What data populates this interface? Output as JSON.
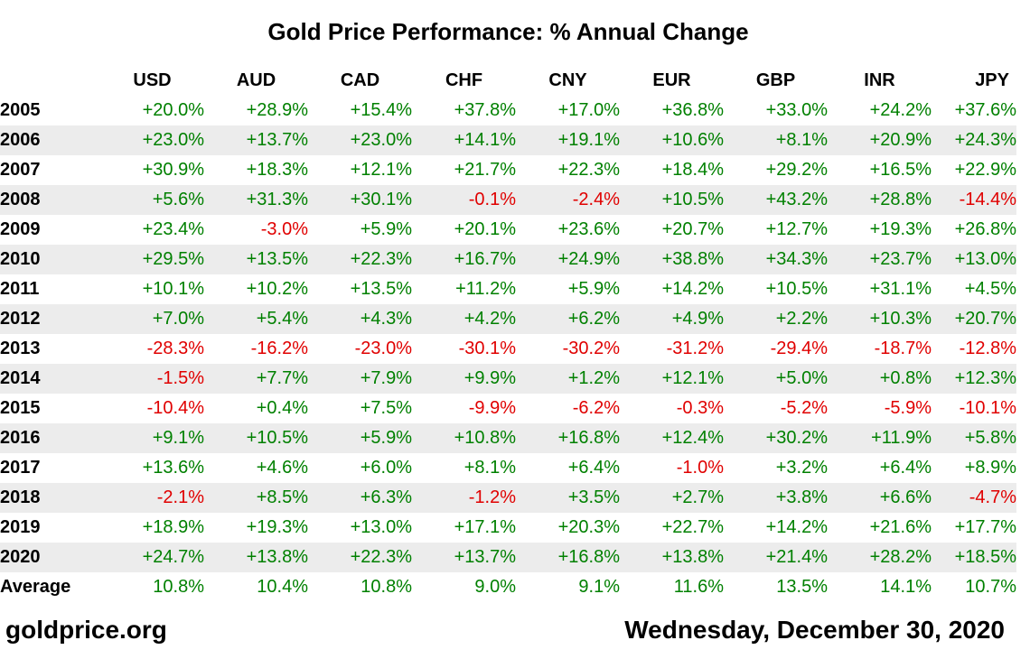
{
  "chart_data": {
    "type": "table",
    "title": "Gold Price Performance: % Annual Change",
    "columns": [
      "USD",
      "AUD",
      "CAD",
      "CHF",
      "CNY",
      "EUR",
      "GBP",
      "INR",
      "JPY"
    ],
    "rows": [
      {
        "label": "2005",
        "values": [
          "+20.0%",
          "+28.9%",
          "+15.4%",
          "+37.8%",
          "+17.0%",
          "+36.8%",
          "+33.0%",
          "+24.2%",
          "+37.6%"
        ]
      },
      {
        "label": "2006",
        "values": [
          "+23.0%",
          "+13.7%",
          "+23.0%",
          "+14.1%",
          "+19.1%",
          "+10.6%",
          "+8.1%",
          "+20.9%",
          "+24.3%"
        ]
      },
      {
        "label": "2007",
        "values": [
          "+30.9%",
          "+18.3%",
          "+12.1%",
          "+21.7%",
          "+22.3%",
          "+18.4%",
          "+29.2%",
          "+16.5%",
          "+22.9%"
        ]
      },
      {
        "label": "2008",
        "values": [
          "+5.6%",
          "+31.3%",
          "+30.1%",
          "-0.1%",
          "-2.4%",
          "+10.5%",
          "+43.2%",
          "+28.8%",
          "-14.4%"
        ]
      },
      {
        "label": "2009",
        "values": [
          "+23.4%",
          "-3.0%",
          "+5.9%",
          "+20.1%",
          "+23.6%",
          "+20.7%",
          "+12.7%",
          "+19.3%",
          "+26.8%"
        ]
      },
      {
        "label": "2010",
        "values": [
          "+29.5%",
          "+13.5%",
          "+22.3%",
          "+16.7%",
          "+24.9%",
          "+38.8%",
          "+34.3%",
          "+23.7%",
          "+13.0%"
        ]
      },
      {
        "label": "2011",
        "values": [
          "+10.1%",
          "+10.2%",
          "+13.5%",
          "+11.2%",
          "+5.9%",
          "+14.2%",
          "+10.5%",
          "+31.1%",
          "+4.5%"
        ]
      },
      {
        "label": "2012",
        "values": [
          "+7.0%",
          "+5.4%",
          "+4.3%",
          "+4.2%",
          "+6.2%",
          "+4.9%",
          "+2.2%",
          "+10.3%",
          "+20.7%"
        ]
      },
      {
        "label": "2013",
        "values": [
          "-28.3%",
          "-16.2%",
          "-23.0%",
          "-30.1%",
          "-30.2%",
          "-31.2%",
          "-29.4%",
          "-18.7%",
          "-12.8%"
        ]
      },
      {
        "label": "2014",
        "values": [
          "-1.5%",
          "+7.7%",
          "+7.9%",
          "+9.9%",
          "+1.2%",
          "+12.1%",
          "+5.0%",
          "+0.8%",
          "+12.3%"
        ]
      },
      {
        "label": "2015",
        "values": [
          "-10.4%",
          "+0.4%",
          "+7.5%",
          "-9.9%",
          "-6.2%",
          "-0.3%",
          "-5.2%",
          "-5.9%",
          "-10.1%"
        ]
      },
      {
        "label": "2016",
        "values": [
          "+9.1%",
          "+10.5%",
          "+5.9%",
          "+10.8%",
          "+16.8%",
          "+12.4%",
          "+30.2%",
          "+11.9%",
          "+5.8%"
        ]
      },
      {
        "label": "2017",
        "values": [
          "+13.6%",
          "+4.6%",
          "+6.0%",
          "+8.1%",
          "+6.4%",
          "-1.0%",
          "+3.2%",
          "+6.4%",
          "+8.9%"
        ]
      },
      {
        "label": "2018",
        "values": [
          "-2.1%",
          "+8.5%",
          "+6.3%",
          "-1.2%",
          "+3.5%",
          "+2.7%",
          "+3.8%",
          "+6.6%",
          "-4.7%"
        ]
      },
      {
        "label": "2019",
        "values": [
          "+18.9%",
          "+19.3%",
          "+13.0%",
          "+17.1%",
          "+20.3%",
          "+22.7%",
          "+14.2%",
          "+21.6%",
          "+17.7%"
        ]
      },
      {
        "label": "2020",
        "values": [
          "+24.7%",
          "+13.8%",
          "+22.3%",
          "+13.7%",
          "+16.8%",
          "+13.8%",
          "+21.4%",
          "+28.2%",
          "+18.5%"
        ]
      },
      {
        "label": "Average",
        "values": [
          "10.8%",
          "10.4%",
          "10.8%",
          "9.0%",
          "9.1%",
          "11.6%",
          "13.5%",
          "14.1%",
          "10.7%"
        ]
      }
    ],
    "colors": {
      "positive": "#008000",
      "negative": "#e00000",
      "row_shade": "#ececec"
    }
  },
  "footer": {
    "source": "goldprice.org",
    "date": "Wednesday, December 30, 2020"
  }
}
